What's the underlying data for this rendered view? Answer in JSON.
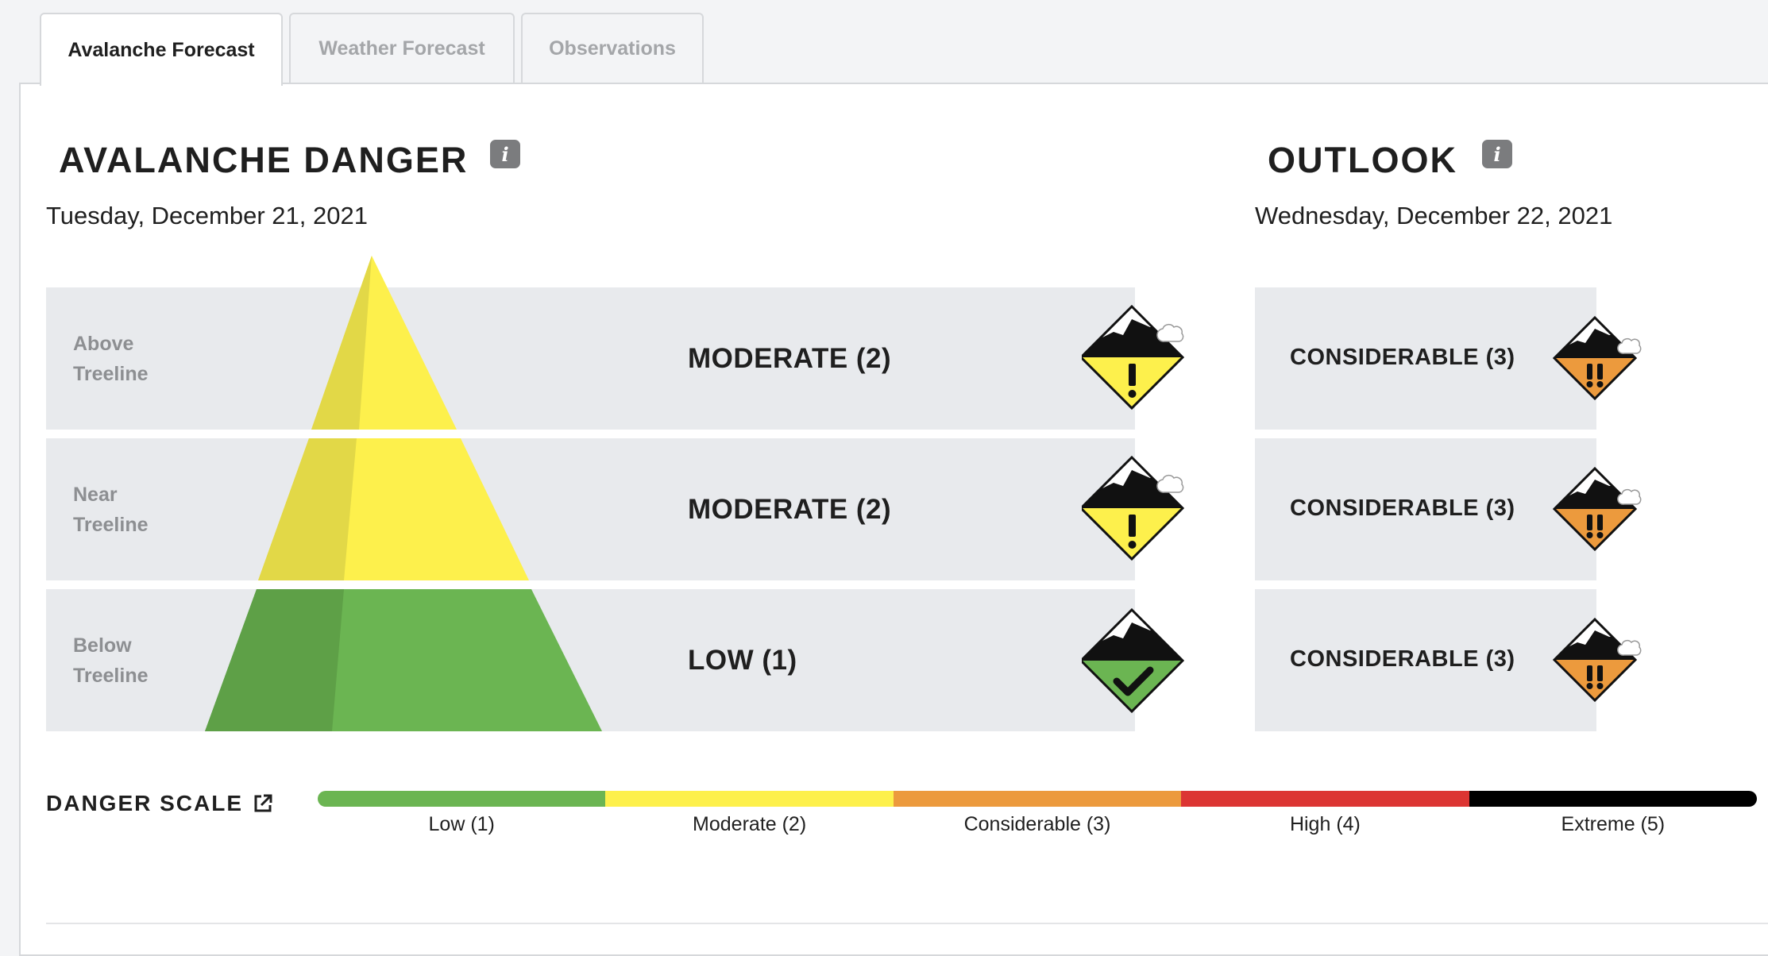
{
  "tabs": [
    {
      "label": "Avalanche Forecast",
      "active": true
    },
    {
      "label": "Weather Forecast",
      "active": false
    },
    {
      "label": "Observations",
      "active": false
    }
  ],
  "danger": {
    "title": "AVALANCHE DANGER",
    "date": "Tuesday, December 21, 2021",
    "rows": [
      {
        "elevation_line1": "Above",
        "elevation_line2": "Treeline",
        "rating": "MODERATE (2)",
        "level": 2,
        "icon": "moderate-danger-icon"
      },
      {
        "elevation_line1": "Near",
        "elevation_line2": "Treeline",
        "rating": "MODERATE (2)",
        "level": 2,
        "icon": "moderate-danger-icon"
      },
      {
        "elevation_line1": "Below",
        "elevation_line2": "Treeline",
        "rating": "LOW (1)",
        "level": 1,
        "icon": "low-danger-icon"
      }
    ]
  },
  "outlook": {
    "title": "OUTLOOK",
    "date": "Wednesday, December 22, 2021",
    "rows": [
      {
        "rating": "CONSIDERABLE (3)",
        "level": 3,
        "icon": "considerable-danger-icon"
      },
      {
        "rating": "CONSIDERABLE (3)",
        "level": 3,
        "icon": "considerable-danger-icon"
      },
      {
        "rating": "CONSIDERABLE (3)",
        "level": 3,
        "icon": "considerable-danger-icon"
      }
    ]
  },
  "scale": {
    "title": "DANGER SCALE",
    "levels": [
      {
        "label": "Low (1)",
        "color": "#6bb552"
      },
      {
        "label": "Moderate (2)",
        "color": "#fdf04c"
      },
      {
        "label": "Considerable (3)",
        "color": "#ec9a3d"
      },
      {
        "label": "High (4)",
        "color": "#dc3533"
      },
      {
        "label": "Extreme (5)",
        "color": "#000000"
      }
    ]
  },
  "colors": {
    "low": "#6bb552",
    "moderate": "#fdf04c",
    "considerable": "#ec9a3d",
    "band": "#e8eaed"
  }
}
